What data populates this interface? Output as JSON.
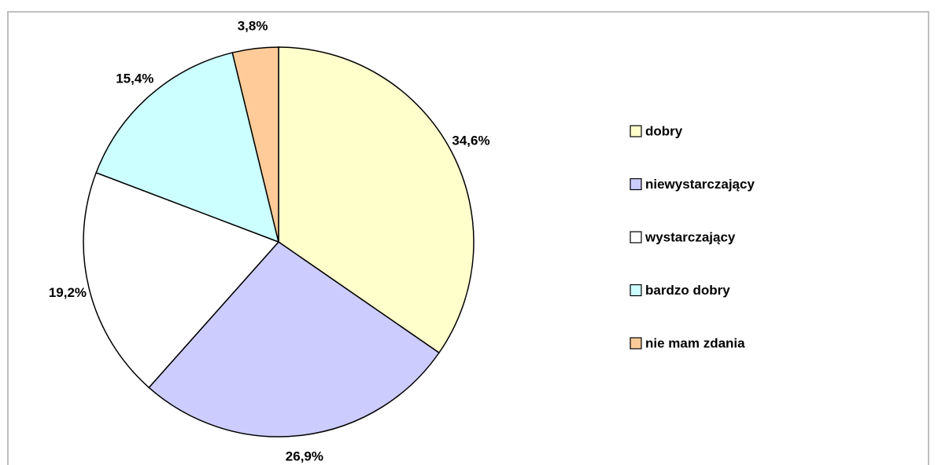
{
  "chart_data": {
    "type": "pie",
    "categories": [
      "dobry",
      "niewystarczający",
      "wystarczający",
      "bardzo dobry",
      "nie mam zdania"
    ],
    "values": [
      34.6,
      26.9,
      19.2,
      15.4,
      3.8
    ],
    "value_labels": [
      "34,6%",
      "26,9%",
      "19,2%",
      "15,4%",
      "3,8%"
    ],
    "colors": [
      "#ffffcc",
      "#ccccff",
      "#ffffff",
      "#ccffff",
      "#ffcc99"
    ],
    "legend": "right"
  }
}
